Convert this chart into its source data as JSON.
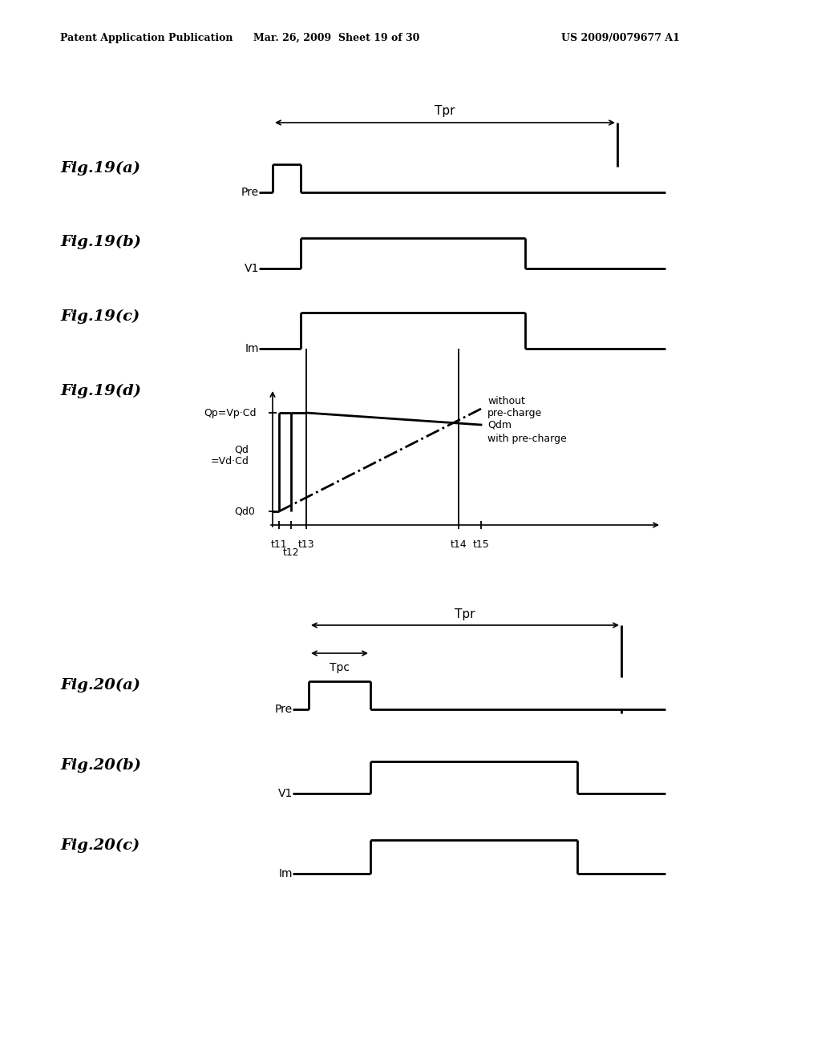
{
  "bg_color": "#ffffff",
  "header_left": "Patent Application Publication",
  "header_mid": "Mar. 26, 2009  Sheet 19 of 30",
  "header_right": "US 2009/0079677 A1",
  "fig19_tpr_label": "Tpr",
  "fig19a_label": "Fig.19(a)",
  "fig19a_pre_label": "Pre",
  "fig19b_label": "Fig.19(b)",
  "fig19b_v1_label": "V1",
  "fig19c_label": "Fig.19(c)",
  "fig19c_im_label": "Im",
  "fig19d_label": "Fig.19(d)",
  "fig19d_qp_label": "Qp=Vp·Cd",
  "fig19d_qd_label": "Qd\n=Vd·Cd",
  "fig19d_qd0_label": "Qd0",
  "fig19d_qdm_label": "Qdm",
  "fig19d_with_precharge_label": "with pre-charge",
  "fig19d_without_precharge_label": "without\npre-charge",
  "fig20_tpr_label": "Tpr",
  "fig20_tpc_label": "Tpc",
  "fig20a_label": "Fig.20(a)",
  "fig20a_pre_label": "Pre",
  "fig20b_label": "Fig.20(b)",
  "fig20b_v1_label": "V1",
  "fig20c_label": "Fig.20(c)",
  "fig20c_im_label": "Im"
}
